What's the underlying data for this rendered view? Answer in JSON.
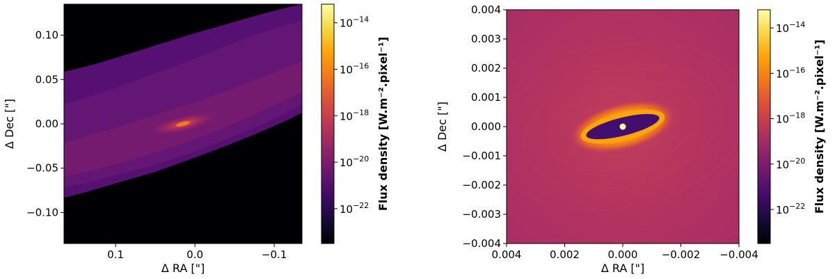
{
  "chart_data": [
    {
      "type": "heatmap",
      "title": "",
      "xlabel": "Δ RA [\"]",
      "ylabel": "Δ Dec [\"]",
      "xlim": [
        0.165,
        -0.135
      ],
      "ylim": [
        -0.135,
        0.135
      ],
      "x_ticks": [
        {
          "value": 0.1,
          "label": "0.1"
        },
        {
          "value": 0.0,
          "label": "0.0"
        },
        {
          "value": -0.1,
          "label": "−0.1"
        }
      ],
      "y_ticks": [
        {
          "value": 0.1,
          "label": "0.10"
        },
        {
          "value": 0.05,
          "label": "0.05"
        },
        {
          "value": 0.0,
          "label": "0.00"
        },
        {
          "value": -0.05,
          "label": "−0.05"
        },
        {
          "value": -0.1,
          "label": "−0.10"
        }
      ],
      "colormap": "inferno",
      "background_color": "#000004",
      "colorbar": {
        "label": "Flux density [W.m⁻².pixel⁻¹]",
        "scale": "log",
        "range_exponent": [
          -23.5,
          -13.2
        ],
        "ticks": [
          {
            "exp": -14,
            "base": "10",
            "sup": "−14"
          },
          {
            "exp": -16,
            "base": "10",
            "sup": "−16"
          },
          {
            "exp": -18,
            "base": "10",
            "sup": "−18"
          },
          {
            "exp": -20,
            "base": "10",
            "sup": "−20"
          },
          {
            "exp": -22,
            "base": "10",
            "sup": "−22"
          }
        ]
      }
    },
    {
      "type": "heatmap",
      "title": "",
      "xlabel": "Δ RA [\"]",
      "ylabel": "Δ Dec [\"]",
      "xlim": [
        0.004,
        -0.004
      ],
      "ylim": [
        -0.004,
        0.004
      ],
      "x_ticks": [
        {
          "value": 0.004,
          "label": "0.004"
        },
        {
          "value": 0.002,
          "label": "0.002"
        },
        {
          "value": 0.0,
          "label": "0.000"
        },
        {
          "value": -0.002,
          "label": "−0.002"
        },
        {
          "value": -0.004,
          "label": "−0.004"
        }
      ],
      "y_ticks": [
        {
          "value": 0.004,
          "label": "0.004"
        },
        {
          "value": 0.003,
          "label": "0.003"
        },
        {
          "value": 0.002,
          "label": "0.002"
        },
        {
          "value": 0.001,
          "label": "0.001"
        },
        {
          "value": 0.0,
          "label": "0.000"
        },
        {
          "value": -0.001,
          "label": "−0.001"
        },
        {
          "value": -0.002,
          "label": "−0.002"
        },
        {
          "value": -0.003,
          "label": "−0.003"
        },
        {
          "value": -0.004,
          "label": "−0.004"
        }
      ],
      "colormap": "inferno",
      "background_color": "#b8356a",
      "inner_cavity_color": "#420f6e",
      "rim_color": "#fca50a",
      "star_color": "#fcffa4",
      "colorbar": {
        "label": "Flux density [W.m⁻².pixel⁻¹]",
        "scale": "log",
        "range_exponent": [
          -23.5,
          -13.2
        ],
        "ticks": [
          {
            "exp": -14,
            "base": "10",
            "sup": "−14"
          },
          {
            "exp": -16,
            "base": "10",
            "sup": "−16"
          },
          {
            "exp": -18,
            "base": "10",
            "sup": "−18"
          },
          {
            "exp": -20,
            "base": "10",
            "sup": "−20"
          },
          {
            "exp": -22,
            "base": "10",
            "sup": "−22"
          }
        ]
      }
    }
  ]
}
